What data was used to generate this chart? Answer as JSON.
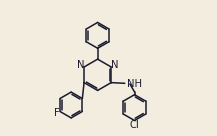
{
  "background_color": "#f3ede0",
  "line_color": "#1a1a2e",
  "line_width": 1.1,
  "font_size": 7.2,
  "figsize": [
    2.17,
    1.36
  ],
  "dpi": 100,
  "xlim": [
    0.0,
    1.0
  ],
  "ylim": [
    0.0,
    1.0
  ]
}
